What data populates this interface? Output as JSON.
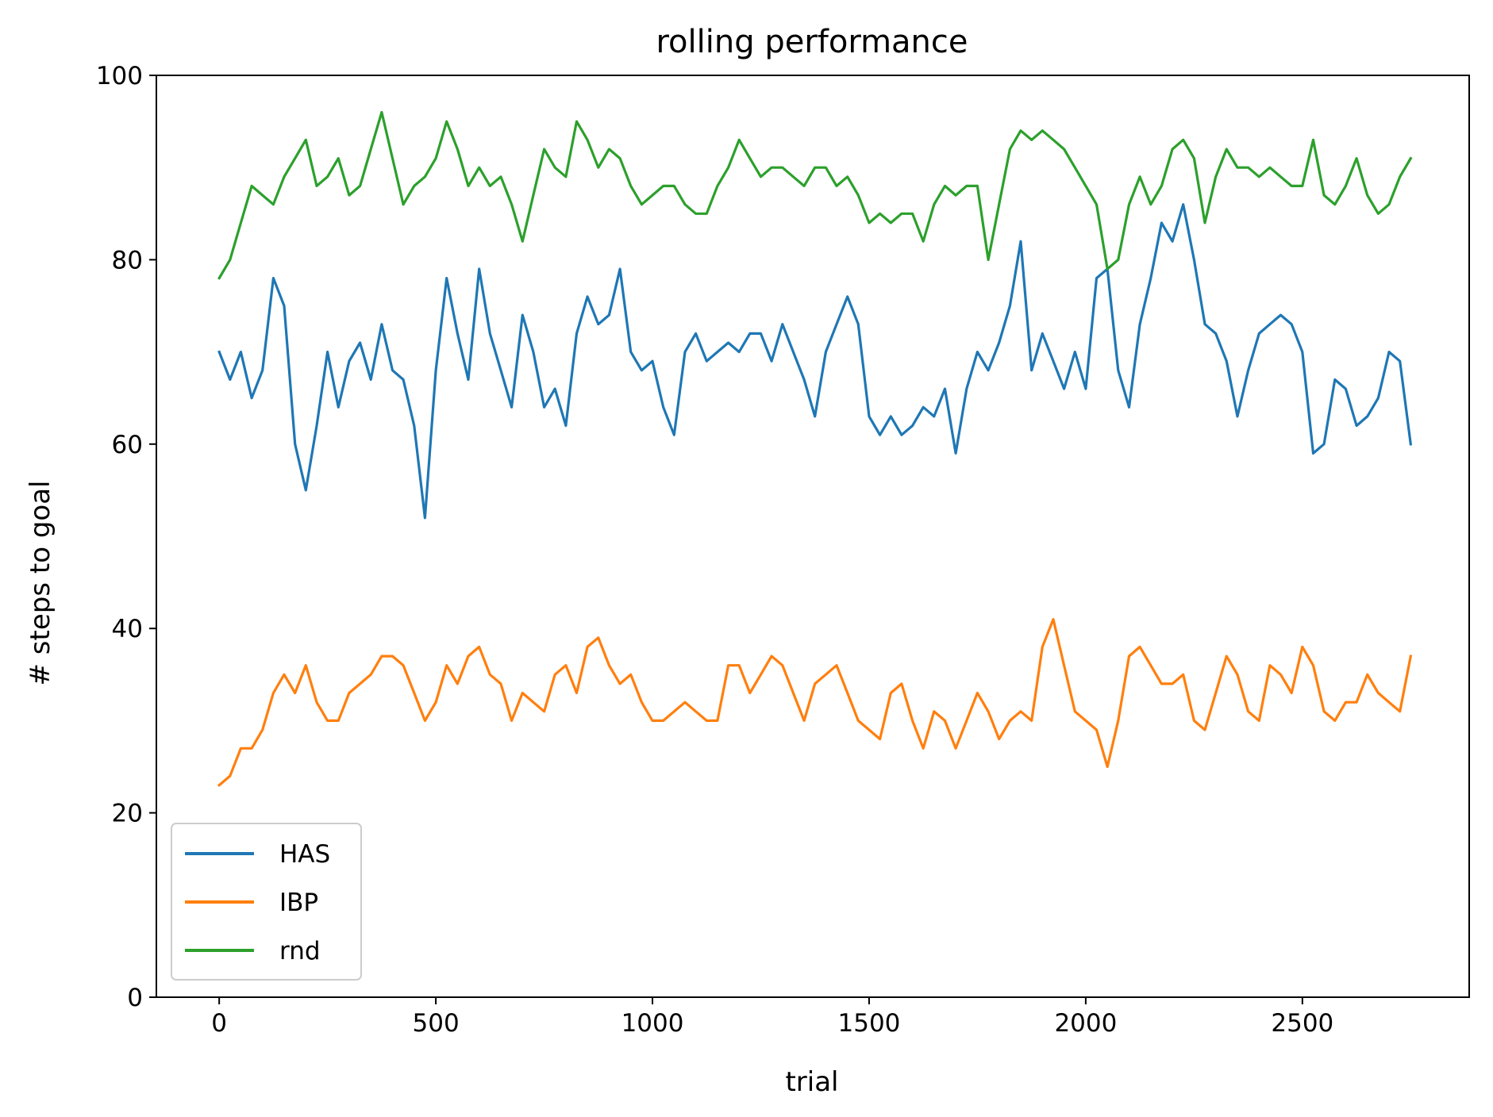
{
  "chart_data": {
    "type": "line",
    "title": "rolling performance",
    "xlabel": "trial",
    "ylabel": "# steps to goal",
    "xlim": [
      -145,
      2885
    ],
    "ylim": [
      0,
      100
    ],
    "xticks": [
      0,
      500,
      1000,
      1500,
      2000,
      2500
    ],
    "yticks": [
      0,
      20,
      40,
      60,
      80,
      100
    ],
    "grid": false,
    "legend_position": "lower-left",
    "series": [
      {
        "name": "HAS",
        "color": "#1f77b4",
        "x": [
          0,
          25,
          50,
          75,
          100,
          125,
          150,
          175,
          200,
          225,
          250,
          275,
          300,
          325,
          350,
          375,
          400,
          425,
          450,
          475,
          500,
          525,
          550,
          575,
          600,
          625,
          650,
          675,
          700,
          725,
          750,
          775,
          800,
          825,
          850,
          875,
          900,
          925,
          950,
          975,
          1000,
          1025,
          1050,
          1075,
          1100,
          1125,
          1150,
          1175,
          1200,
          1225,
          1250,
          1275,
          1300,
          1325,
          1350,
          1375,
          1400,
          1425,
          1450,
          1475,
          1500,
          1525,
          1550,
          1575,
          1600,
          1625,
          1650,
          1675,
          1700,
          1725,
          1750,
          1775,
          1800,
          1825,
          1850,
          1875,
          1900,
          1925,
          1950,
          1975,
          2000,
          2025,
          2050,
          2075,
          2100,
          2125,
          2150,
          2175,
          2200,
          2225,
          2250,
          2275,
          2300,
          2325,
          2350,
          2375,
          2400,
          2425,
          2450,
          2475,
          2500,
          2525,
          2550,
          2575,
          2600,
          2625,
          2650,
          2675,
          2700,
          2725,
          2750
        ],
        "y": [
          70,
          67,
          70,
          65,
          68,
          78,
          75,
          60,
          55,
          62,
          70,
          64,
          69,
          71,
          67,
          73,
          68,
          67,
          62,
          52,
          68,
          78,
          72,
          67,
          79,
          72,
          68,
          64,
          74,
          70,
          64,
          66,
          62,
          72,
          76,
          73,
          74,
          79,
          70,
          68,
          69,
          64,
          61,
          70,
          72,
          69,
          70,
          71,
          70,
          72,
          72,
          69,
          73,
          70,
          67,
          63,
          70,
          73,
          76,
          73,
          63,
          61,
          63,
          61,
          62,
          64,
          63,
          66,
          59,
          66,
          70,
          68,
          71,
          75,
          82,
          68,
          72,
          69,
          66,
          70,
          66,
          78,
          79,
          68,
          64,
          73,
          78,
          84,
          82,
          86,
          80,
          73,
          72,
          69,
          63,
          68,
          72,
          73,
          74,
          73,
          70,
          59,
          60,
          67,
          66,
          62,
          63,
          65,
          70,
          69,
          60
        ]
      },
      {
        "name": "IBP",
        "color": "#ff7f0e",
        "x": [
          0,
          25,
          50,
          75,
          100,
          125,
          150,
          175,
          200,
          225,
          250,
          275,
          300,
          325,
          350,
          375,
          400,
          425,
          450,
          475,
          500,
          525,
          550,
          575,
          600,
          625,
          650,
          675,
          700,
          725,
          750,
          775,
          800,
          825,
          850,
          875,
          900,
          925,
          950,
          975,
          1000,
          1025,
          1050,
          1075,
          1100,
          1125,
          1150,
          1175,
          1200,
          1225,
          1250,
          1275,
          1300,
          1325,
          1350,
          1375,
          1400,
          1425,
          1450,
          1475,
          1500,
          1525,
          1550,
          1575,
          1600,
          1625,
          1650,
          1675,
          1700,
          1725,
          1750,
          1775,
          1800,
          1825,
          1850,
          1875,
          1900,
          1925,
          1950,
          1975,
          2000,
          2025,
          2050,
          2075,
          2100,
          2125,
          2150,
          2175,
          2200,
          2225,
          2250,
          2275,
          2300,
          2325,
          2350,
          2375,
          2400,
          2425,
          2450,
          2475,
          2500,
          2525,
          2550,
          2575,
          2600,
          2625,
          2650,
          2675,
          2700,
          2725,
          2750
        ],
        "y": [
          23,
          24,
          27,
          27,
          29,
          33,
          35,
          33,
          36,
          32,
          30,
          30,
          33,
          34,
          35,
          37,
          37,
          36,
          33,
          30,
          32,
          36,
          34,
          37,
          38,
          35,
          34,
          30,
          33,
          32,
          31,
          35,
          36,
          33,
          38,
          39,
          36,
          34,
          35,
          32,
          30,
          30,
          31,
          32,
          31,
          30,
          30,
          36,
          36,
          33,
          35,
          37,
          36,
          33,
          30,
          34,
          35,
          36,
          33,
          30,
          29,
          28,
          33,
          34,
          30,
          27,
          31,
          30,
          27,
          30,
          33,
          31,
          28,
          30,
          31,
          30,
          38,
          41,
          36,
          31,
          30,
          29,
          25,
          30,
          37,
          38,
          36,
          34,
          34,
          35,
          30,
          29,
          33,
          37,
          35,
          31,
          30,
          36,
          35,
          33,
          38,
          36,
          31,
          30,
          32,
          32,
          35,
          33,
          32,
          31,
          37
        ]
      },
      {
        "name": "rnd",
        "color": "#2ca02c",
        "x": [
          0,
          25,
          50,
          75,
          100,
          125,
          150,
          175,
          200,
          225,
          250,
          275,
          300,
          325,
          350,
          375,
          400,
          425,
          450,
          475,
          500,
          525,
          550,
          575,
          600,
          625,
          650,
          675,
          700,
          725,
          750,
          775,
          800,
          825,
          850,
          875,
          900,
          925,
          950,
          975,
          1000,
          1025,
          1050,
          1075,
          1100,
          1125,
          1150,
          1175,
          1200,
          1225,
          1250,
          1275,
          1300,
          1325,
          1350,
          1375,
          1400,
          1425,
          1450,
          1475,
          1500,
          1525,
          1550,
          1575,
          1600,
          1625,
          1650,
          1675,
          1700,
          1725,
          1750,
          1775,
          1800,
          1825,
          1850,
          1875,
          1900,
          1925,
          1950,
          1975,
          2000,
          2025,
          2050,
          2075,
          2100,
          2125,
          2150,
          2175,
          2200,
          2225,
          2250,
          2275,
          2300,
          2325,
          2350,
          2375,
          2400,
          2425,
          2450,
          2475,
          2500,
          2525,
          2550,
          2575,
          2600,
          2625,
          2650,
          2675,
          2700,
          2725,
          2750
        ],
        "y": [
          78,
          80,
          84,
          88,
          87,
          86,
          89,
          91,
          93,
          88,
          89,
          91,
          87,
          88,
          92,
          96,
          91,
          86,
          88,
          89,
          91,
          95,
          92,
          88,
          90,
          88,
          89,
          86,
          82,
          87,
          92,
          90,
          89,
          95,
          93,
          90,
          92,
          91,
          88,
          86,
          87,
          88,
          88,
          86,
          85,
          85,
          88,
          90,
          93,
          91,
          89,
          90,
          90,
          89,
          88,
          90,
          90,
          88,
          89,
          87,
          84,
          85,
          84,
          85,
          85,
          82,
          86,
          88,
          87,
          88,
          88,
          80,
          86,
          92,
          94,
          93,
          94,
          93,
          92,
          90,
          88,
          86,
          79,
          80,
          86,
          89,
          86,
          88,
          92,
          93,
          91,
          84,
          89,
          92,
          90,
          90,
          89,
          90,
          89,
          88,
          88,
          93,
          87,
          86,
          88,
          91,
          87,
          85,
          86,
          89,
          91
        ]
      }
    ]
  }
}
